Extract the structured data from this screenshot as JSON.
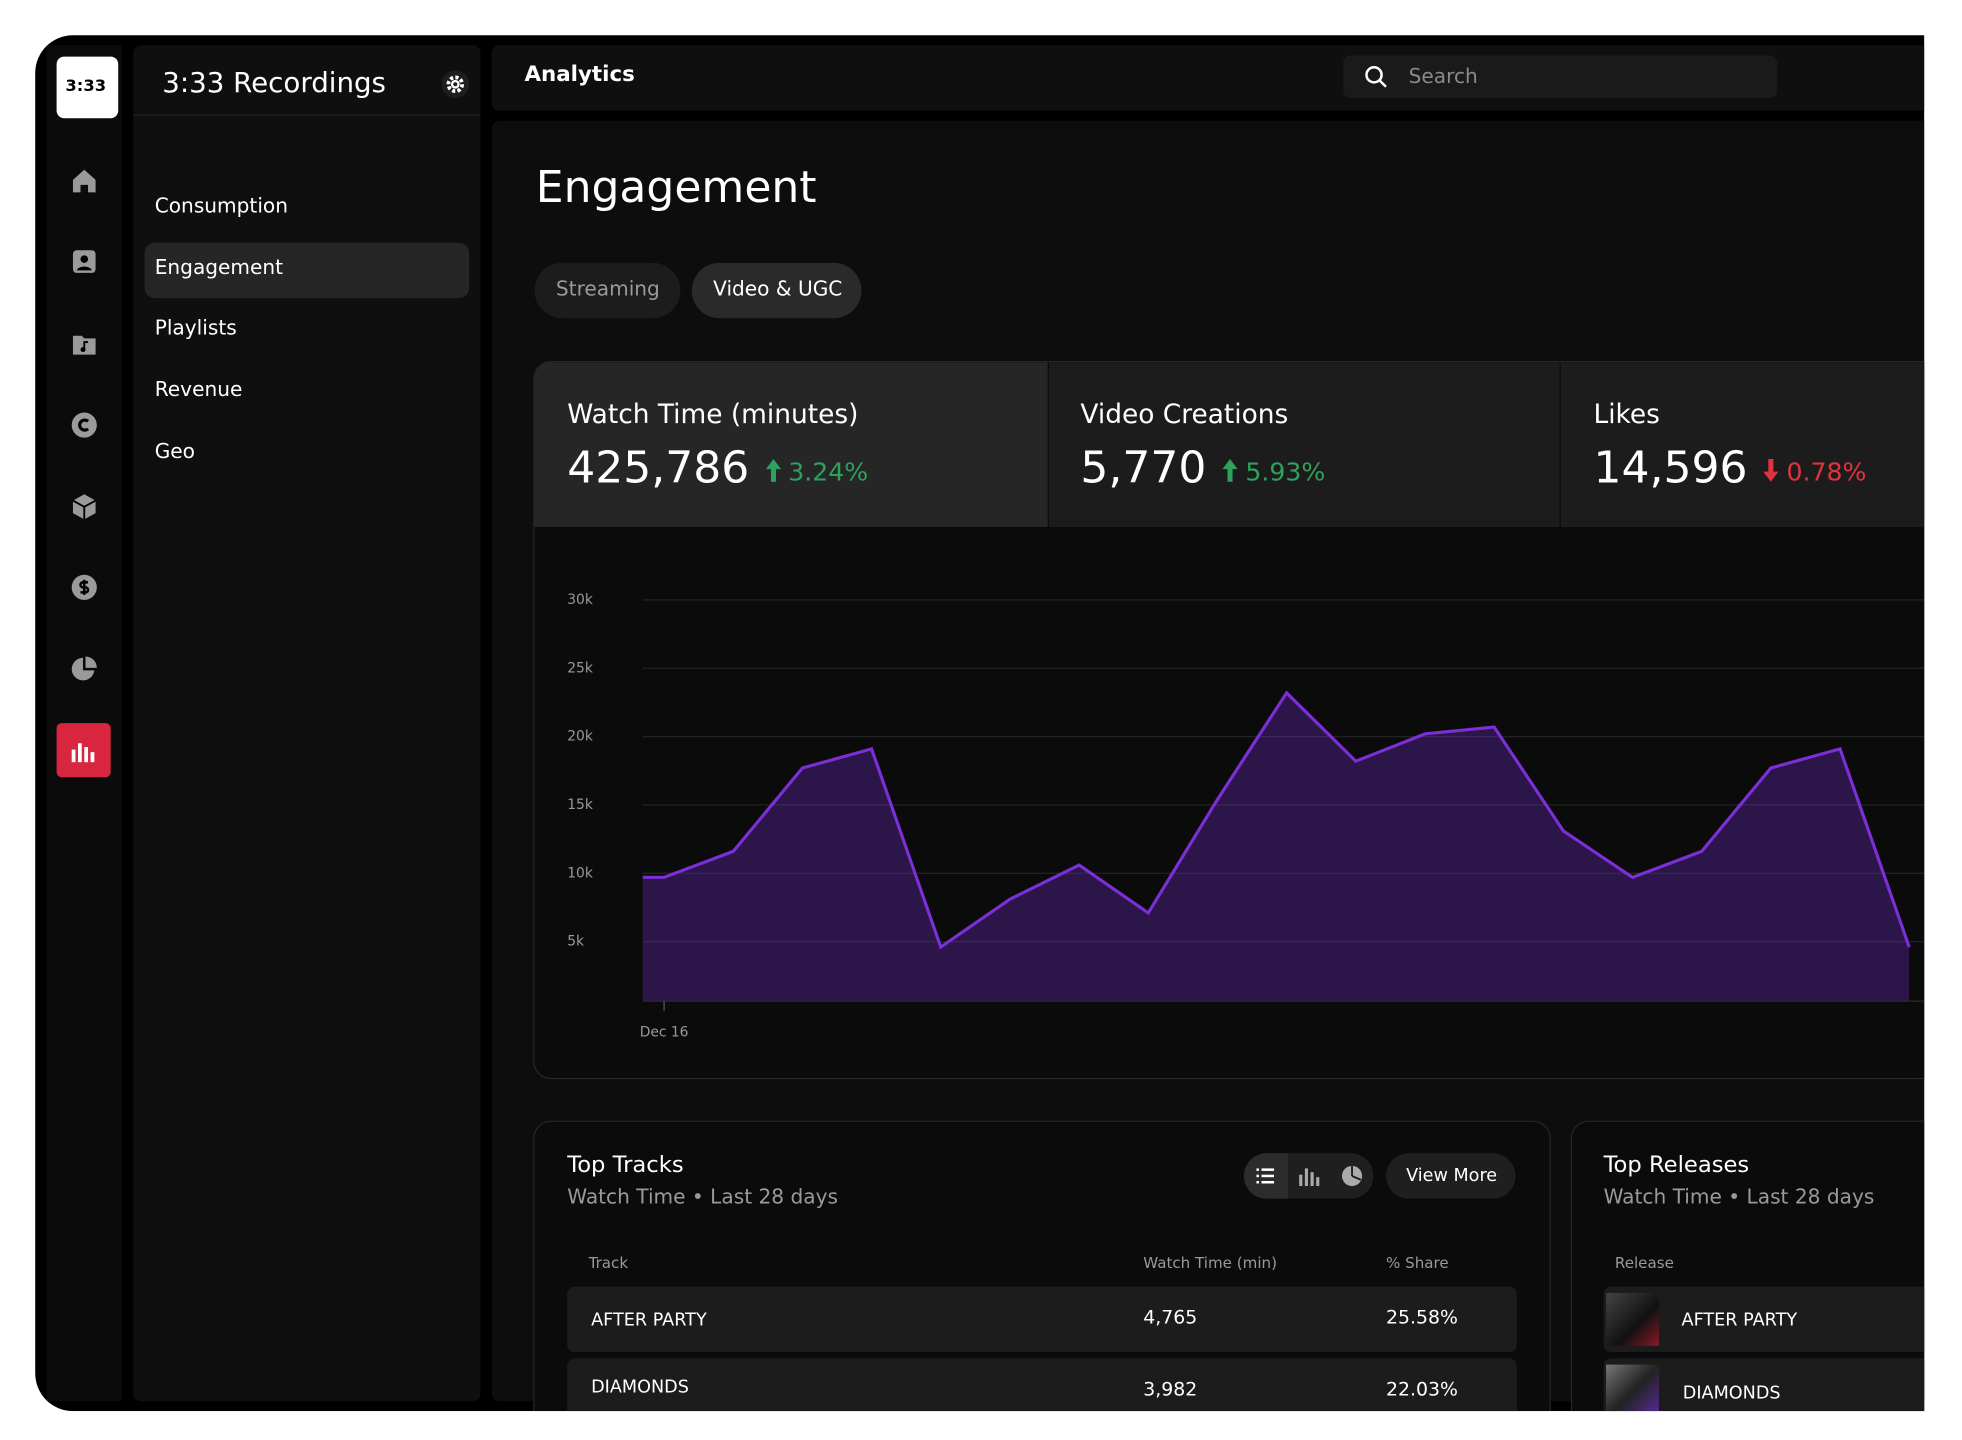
{
  "logo": "3:33",
  "sidebar": {
    "title": "3:33 Recordings",
    "nav": [
      "Consumption",
      "Engagement",
      "Playlists",
      "Revenue",
      "Geo"
    ],
    "active": 1
  },
  "topbar": {
    "title": "Analytics",
    "search_placeholder": "Search"
  },
  "page_title": "Engagement",
  "tabs": [
    "Streaming",
    "Video & UGC"
  ],
  "metrics": [
    {
      "label": "Watch Time (minutes)",
      "value": "425,786",
      "change": "3.24%",
      "direction": "up"
    },
    {
      "label": "Video Creations",
      "value": "5,770",
      "change": "5.93%",
      "direction": "up"
    },
    {
      "label": "Likes",
      "value": "14,596",
      "change": "0.78%",
      "direction": "down"
    }
  ],
  "chart_data": {
    "type": "area",
    "color": "#7b2fd6",
    "categories": [
      "Dec 16",
      null,
      null,
      null,
      null,
      null,
      null,
      null,
      null,
      null,
      null,
      null,
      null,
      null,
      null,
      null,
      null,
      null,
      null
    ],
    "values": [
      9700,
      11600,
      17700,
      19100,
      4600,
      8100,
      10600,
      7100,
      15400,
      23200,
      18200,
      20200,
      20700,
      13100,
      9700,
      11600,
      17700,
      19100,
      4600
    ],
    "ylim": [
      0,
      30000
    ],
    "yticks": [
      {
        "value": 5000,
        "label": "5k"
      },
      {
        "value": 10000,
        "label": "10k"
      },
      {
        "value": 15000,
        "label": "15k"
      },
      {
        "value": 20000,
        "label": "20k"
      },
      {
        "value": 25000,
        "label": "25k"
      },
      {
        "value": 30000,
        "label": "30k"
      }
    ],
    "grid": true
  },
  "top_tracks": {
    "title": "Top Tracks",
    "subtitle": "Watch Time • Last 28 days",
    "button": "View More",
    "columns": [
      "Track",
      "Watch Time (min)",
      "% Share"
    ],
    "rows": [
      [
        "AFTER PARTY",
        "4,765",
        "25.58%"
      ],
      [
        "DIAMONDS",
        "3,982",
        "22.03%"
      ]
    ]
  },
  "top_releases": {
    "title": "Top Releases",
    "subtitle": "Watch Time • Last 28 days",
    "columns": [
      "Release"
    ],
    "rows": [
      [
        "AFTER PARTY"
      ],
      [
        "DIAMONDS"
      ]
    ]
  }
}
